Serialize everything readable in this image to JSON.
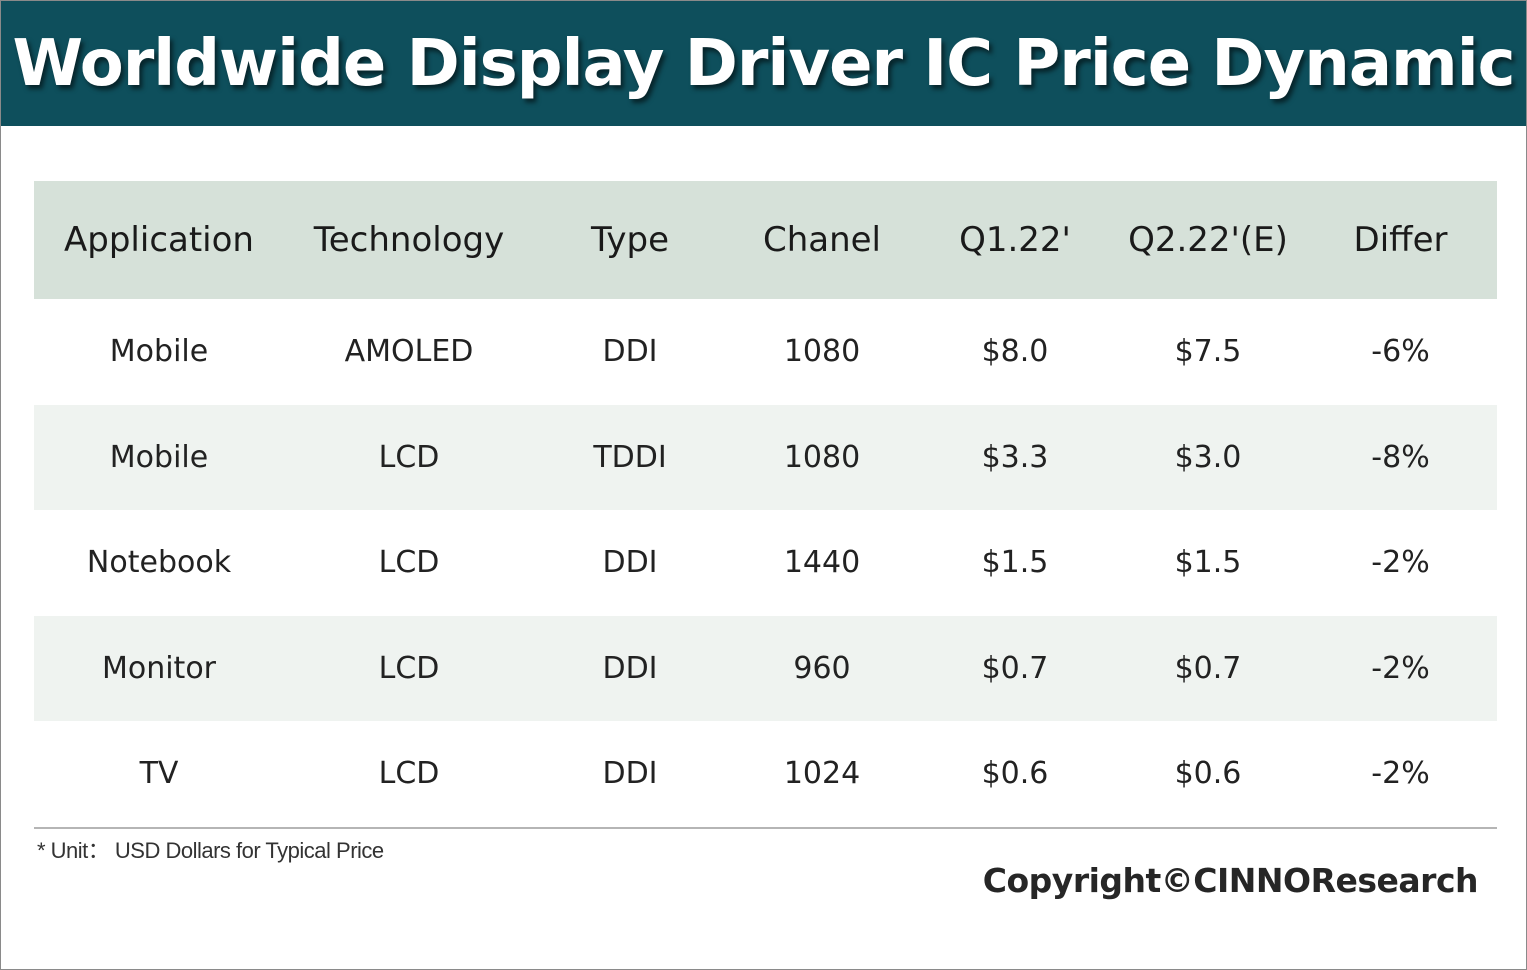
{
  "title": "Worldwide Display Driver IC Price Dynamic",
  "chart_data": {
    "type": "table",
    "columns": [
      "Application",
      "Technology",
      "Type",
      "Chanel",
      "Q1.22'",
      "Q2.22'(E)",
      "Differ"
    ],
    "rows": [
      [
        "Mobile",
        "AMOLED",
        "DDI",
        "1080",
        "$8.0",
        "$7.5",
        "-6%"
      ],
      [
        "Mobile",
        "LCD",
        "TDDI",
        "1080",
        "$3.3",
        "$3.0",
        "-8%"
      ],
      [
        "Notebook",
        "LCD",
        "DDI",
        "1440",
        "$1.5",
        "$1.5",
        "-2%"
      ],
      [
        "Monitor",
        "LCD",
        "DDI",
        "960",
        "$0.7",
        "$0.7",
        "-2%"
      ],
      [
        "TV",
        "LCD",
        "DDI",
        "1024",
        "$0.6",
        "$0.6",
        "-2%"
      ]
    ]
  },
  "footnote": "* Unit： USD Dollars for Typical Price",
  "copyright": "Copyright©CINNOResearch",
  "colors": {
    "title_bar": "#0e4f5c",
    "header_row": "#d6e1d9",
    "alt_row": "#eff3f0"
  }
}
